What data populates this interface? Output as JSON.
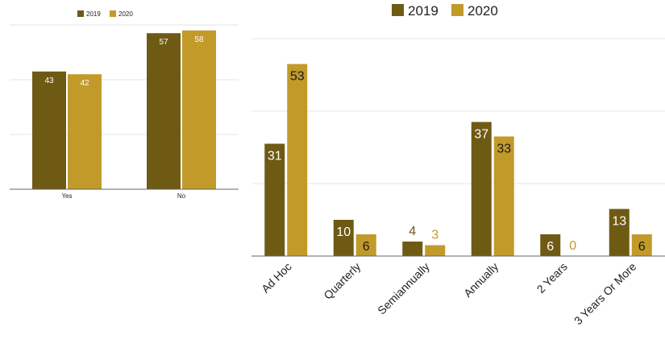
{
  "colors": {
    "series_2019": "#6f5a14",
    "series_2020": "#c19a2a",
    "grid": "#e6e6e6",
    "axis": "#666666",
    "tick_text": "#222222",
    "background": "#ffffff",
    "label_on_bar": "#ffffff",
    "label_on_bar_dark": "#1a1a1a"
  },
  "chart_data": [
    {
      "type": "bar",
      "title": "",
      "xlabel": "",
      "ylabel": "",
      "categories": [
        "Yes",
        "No"
      ],
      "series": [
        {
          "name": "2019",
          "values": [
            43,
            57
          ]
        },
        {
          "name": "2020",
          "values": [
            42,
            58
          ]
        }
      ],
      "ylim": [
        0,
        60
      ],
      "grid": true,
      "legend": "top-left",
      "legend_labels": [
        "2019",
        "2020"
      ],
      "data_labels": true
    },
    {
      "type": "bar",
      "title": "",
      "xlabel": "",
      "ylabel": "",
      "categories": [
        "Ad Hoc",
        "Quarterly",
        "Semiannually",
        "Annually",
        "2 Years",
        "3 Years Or More"
      ],
      "series": [
        {
          "name": "2019",
          "values": [
            31,
            10,
            4,
            37,
            6,
            13
          ]
        },
        {
          "name": "2020",
          "values": [
            53,
            6,
            3,
            33,
            0,
            6
          ]
        }
      ],
      "ylim": [
        0,
        60
      ],
      "grid": true,
      "legend": "top-center",
      "legend_labels": [
        "2019",
        "2020"
      ],
      "data_labels": true,
      "x_tick_rotation": -45
    }
  ]
}
